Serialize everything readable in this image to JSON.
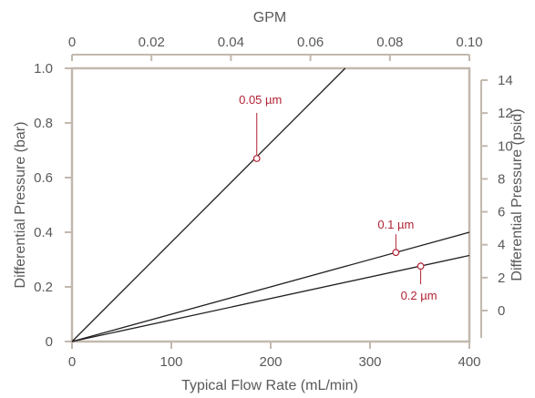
{
  "chart_data": {
    "type": "line",
    "xlabel": "Typical Flow Rate (mL/min)",
    "xlim": [
      0,
      400
    ],
    "x_ticks": [
      "0",
      "100",
      "200",
      "300",
      "400"
    ],
    "ylabel": "Differential Pressure (bar)",
    "ylim": [
      0,
      1.0
    ],
    "y_ticks": [
      "0",
      "0.2",
      "0.4",
      "0.6",
      "0.8",
      "1.0"
    ],
    "top_xlabel": "GPM",
    "top_xlim": [
      0,
      0.1
    ],
    "top_x_ticks": [
      "0",
      "0.02",
      "0.04",
      "0.06",
      "0.08",
      "0.10"
    ],
    "right_ylabel": "Differential Pressure (psid)",
    "right_y_ticks": [
      "0",
      "2",
      "4",
      "6",
      "8",
      "10",
      "12",
      "14"
    ],
    "series": [
      {
        "name": "0.05 µm",
        "x": [
          0,
          275
        ],
        "y": [
          0,
          1.0
        ],
        "marker": {
          "x": 186,
          "y": 0.67
        }
      },
      {
        "name": "0.1 µm",
        "x": [
          0,
          400
        ],
        "y": [
          0,
          0.4
        ],
        "marker": {
          "x": 326,
          "y": 0.326
        }
      },
      {
        "name": "0.2 µm",
        "x": [
          0,
          400
        ],
        "y": [
          0,
          0.315
        ],
        "marker": {
          "x": 351,
          "y": 0.276
        }
      }
    ],
    "grid": false,
    "colors": {
      "frame": "#c2b8ae",
      "text": "#58595b",
      "line": "#231f20",
      "annotation": "#b22234"
    }
  }
}
